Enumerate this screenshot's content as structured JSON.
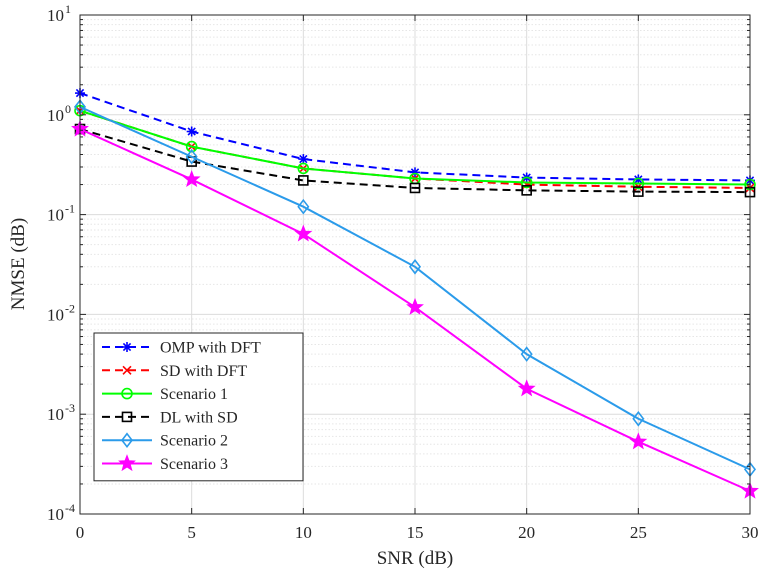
{
  "chart_data": {
    "type": "line",
    "title": "",
    "xlabel": "SNR (dB)",
    "ylabel": "NMSE (dB)",
    "x": [
      0,
      5,
      10,
      15,
      20,
      25,
      30
    ],
    "xlim": [
      0,
      30
    ],
    "ylim": [
      0.0001,
      10
    ],
    "yscale": "log",
    "grid": true,
    "legend_position": "bottom-left",
    "xticks": [
      "0",
      "5",
      "10",
      "15",
      "20",
      "25",
      "30"
    ],
    "yticks": [
      {
        "base": "10",
        "exp": "-4",
        "value": 0.0001
      },
      {
        "base": "10",
        "exp": "-3",
        "value": 0.001
      },
      {
        "base": "10",
        "exp": "-2",
        "value": 0.01
      },
      {
        "base": "10",
        "exp": "-1",
        "value": 0.1
      },
      {
        "base": "10",
        "exp": "0",
        "value": 1
      },
      {
        "base": "10",
        "exp": "1",
        "value": 10
      }
    ],
    "series": [
      {
        "name": "OMP with DFT",
        "color": "#0000ff",
        "dash": "dashed",
        "marker": "asterisk",
        "values": [
          1.65,
          0.68,
          0.36,
          0.265,
          0.235,
          0.225,
          0.22
        ]
      },
      {
        "name": "SD with DFT",
        "color": "#ff0000",
        "dash": "dashed",
        "marker": "x",
        "values": [
          1.1,
          0.48,
          0.29,
          0.23,
          0.2,
          0.19,
          0.185
        ]
      },
      {
        "name": "Scenario 1",
        "color": "#00ff00",
        "dash": "solid",
        "marker": "circle",
        "values": [
          1.1,
          0.48,
          0.29,
          0.23,
          0.21,
          0.205,
          0.2
        ]
      },
      {
        "name": "DL with SD",
        "color": "#000000",
        "dash": "dashed",
        "marker": "square",
        "values": [
          0.72,
          0.34,
          0.22,
          0.185,
          0.175,
          0.17,
          0.168
        ]
      },
      {
        "name": "Scenario 2",
        "color": "#2b9bea",
        "dash": "solid",
        "marker": "diamond",
        "values": [
          1.2,
          0.38,
          0.12,
          0.03,
          0.004,
          0.0009,
          0.00028
        ]
      },
      {
        "name": "Scenario 3",
        "color": "#ff00ff",
        "dash": "solid",
        "marker": "star",
        "values": [
          0.72,
          0.225,
          0.064,
          0.0118,
          0.0018,
          0.00053,
          0.00017
        ]
      }
    ]
  }
}
